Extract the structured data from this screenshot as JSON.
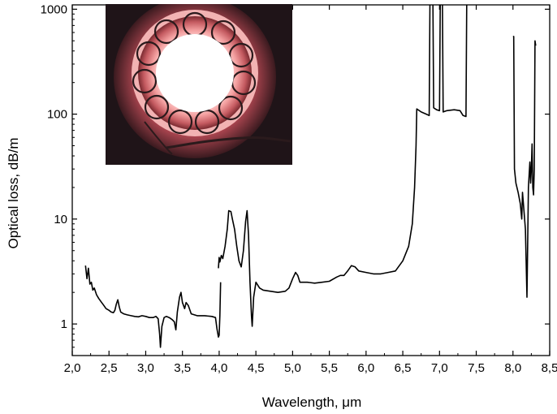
{
  "chart_data": {
    "type": "line",
    "title": "",
    "xlabel": "Wavelength, μm",
    "ylabel": "Optical loss, dB/m",
    "xlim": [
      2.0,
      8.5
    ],
    "ylim": [
      0.5,
      1100
    ],
    "y_scale": "log",
    "grid": false,
    "legend": "none",
    "x_ticks": [
      "2,0",
      "2,5",
      "3,0",
      "3,5",
      "4,0",
      "4,5",
      "5,0",
      "5,5",
      "6,0",
      "6,5",
      "7,0",
      "7,5",
      "8,0",
      "8,5"
    ],
    "y_ticks": [
      "1",
      "10",
      "100",
      "1000"
    ],
    "inset": "photograph of hollow-core fiber cross-section with ring of capillaries",
    "line_color": "#000000",
    "series": [
      {
        "segments": [
          [
            [
              2.18,
              3.6
            ],
            [
              2.2,
              2.7
            ],
            [
              2.22,
              3.4
            ],
            [
              2.24,
              2.4
            ],
            [
              2.26,
              2.5
            ],
            [
              2.28,
              2.1
            ],
            [
              2.3,
              2.2
            ],
            [
              2.33,
              1.9
            ],
            [
              2.36,
              1.75
            ],
            [
              2.4,
              1.6
            ],
            [
              2.43,
              1.5
            ],
            [
              2.46,
              1.4
            ],
            [
              2.5,
              1.35
            ],
            [
              2.53,
              1.3
            ],
            [
              2.56,
              1.28
            ],
            [
              2.58,
              1.35
            ],
            [
              2.6,
              1.55
            ],
            [
              2.62,
              1.7
            ],
            [
              2.64,
              1.45
            ],
            [
              2.66,
              1.3
            ],
            [
              2.7,
              1.25
            ],
            [
              2.75,
              1.22
            ],
            [
              2.8,
              1.2
            ],
            [
              2.85,
              1.18
            ],
            [
              2.9,
              1.17
            ],
            [
              2.95,
              1.2
            ],
            [
              3.0,
              1.18
            ],
            [
              3.05,
              1.15
            ],
            [
              3.1,
              1.15
            ],
            [
              3.14,
              1.18
            ],
            [
              3.17,
              1.12
            ],
            [
              3.19,
              0.8
            ],
            [
              3.2,
              0.6
            ],
            [
              3.22,
              0.95
            ],
            [
              3.25,
              1.15
            ],
            [
              3.28,
              1.18
            ],
            [
              3.32,
              1.15
            ],
            [
              3.36,
              1.1
            ],
            [
              3.39,
              1.05
            ],
            [
              3.41,
              0.88
            ],
            [
              3.43,
              1.3
            ],
            [
              3.46,
              1.8
            ],
            [
              3.48,
              2.0
            ],
            [
              3.5,
              1.6
            ],
            [
              3.53,
              1.4
            ],
            [
              3.55,
              1.6
            ],
            [
              3.58,
              1.5
            ],
            [
              3.62,
              1.25
            ],
            [
              3.7,
              1.2
            ],
            [
              3.8,
              1.2
            ],
            [
              3.9,
              1.18
            ],
            [
              3.95,
              1.15
            ],
            [
              3.97,
              0.9
            ],
            [
              3.99,
              0.75
            ],
            [
              4.0,
              0.78
            ],
            [
              4.01,
              1.2
            ],
            [
              4.02,
              2.5
            ]
          ],
          [
            [
              3.99,
              3.4
            ],
            [
              4.0,
              4.3
            ],
            [
              4.01,
              3.9
            ],
            [
              4.03,
              4.5
            ],
            [
              4.05,
              4.2
            ],
            [
              4.08,
              5.5
            ],
            [
              4.11,
              8.0
            ],
            [
              4.13,
              12.0
            ],
            [
              4.16,
              11.8
            ],
            [
              4.18,
              10.0
            ],
            [
              4.21,
              8.0
            ],
            [
              4.24,
              5.5
            ],
            [
              4.27,
              4.0
            ],
            [
              4.3,
              3.5
            ],
            [
              4.33,
              5.0
            ],
            [
              4.36,
              9.5
            ],
            [
              4.38,
              12.0
            ],
            [
              4.4,
              7.0
            ],
            [
              4.42,
              2.5
            ],
            [
              4.44,
              1.2
            ],
            [
              4.45,
              0.95
            ],
            [
              4.47,
              1.8
            ],
            [
              4.5,
              2.5
            ],
            [
              4.55,
              2.2
            ],
            [
              4.6,
              2.1
            ],
            [
              4.7,
              2.05
            ],
            [
              4.8,
              2.0
            ],
            [
              4.9,
              2.05
            ],
            [
              4.95,
              2.2
            ],
            [
              5.0,
              2.7
            ],
            [
              5.04,
              3.1
            ],
            [
              5.07,
              2.9
            ],
            [
              5.1,
              2.5
            ],
            [
              5.2,
              2.5
            ],
            [
              5.3,
              2.45
            ],
            [
              5.4,
              2.5
            ],
            [
              5.5,
              2.55
            ],
            [
              5.6,
              2.8
            ],
            [
              5.65,
              2.9
            ],
            [
              5.7,
              2.9
            ],
            [
              5.75,
              3.2
            ],
            [
              5.8,
              3.6
            ],
            [
              5.85,
              3.5
            ],
            [
              5.9,
              3.2
            ],
            [
              6.0,
              3.1
            ],
            [
              6.1,
              3.0
            ],
            [
              6.2,
              3.0
            ],
            [
              6.3,
              3.1
            ],
            [
              6.4,
              3.2
            ],
            [
              6.5,
              4.0
            ],
            [
              6.58,
              5.5
            ],
            [
              6.63,
              9.0
            ],
            [
              6.66,
              20.0
            ],
            [
              6.68,
              50.0
            ],
            [
              6.69,
              112.0
            ],
            [
              6.75,
              105.0
            ],
            [
              6.82,
              100.0
            ],
            [
              6.86,
              97.0
            ],
            [
              6.87,
              1100.0
            ]
          ],
          [
            [
              6.91,
              1100.0
            ],
            [
              6.92,
              115.0
            ],
            [
              6.96,
              110.0
            ],
            [
              7.0,
              108.0
            ],
            [
              7.01,
              1100.0
            ]
          ],
          [
            [
              7.04,
              1100.0
            ],
            [
              7.05,
              105.0
            ],
            [
              7.1,
              108.0
            ],
            [
              7.2,
              110.0
            ],
            [
              7.28,
              108.0
            ],
            [
              7.32,
              97.0
            ],
            [
              7.36,
              95.0
            ],
            [
              7.37,
              1100.0
            ]
          ],
          [
            [
              8.0,
              550.0
            ],
            [
              8.01,
              550.0
            ],
            [
              8.02,
              30.0
            ],
            [
              8.04,
              22.0
            ],
            [
              8.07,
              18.0
            ],
            [
              8.1,
              14.0
            ],
            [
              8.12,
              10.0
            ],
            [
              8.13,
              18.0
            ],
            [
              8.15,
              12.0
            ],
            [
              8.17,
              8.0
            ],
            [
              8.19,
              1.8
            ],
            [
              8.21,
              20.0
            ],
            [
              8.23,
              35.0
            ],
            [
              8.24,
              22.0
            ],
            [
              8.25,
              30.0
            ],
            [
              8.26,
              52.0
            ],
            [
              8.27,
              20.0
            ],
            [
              8.28,
              17.0
            ],
            [
              8.29,
              30.0
            ],
            [
              8.3,
              500.0
            ],
            [
              8.31,
              450.0
            ]
          ]
        ]
      }
    ]
  }
}
